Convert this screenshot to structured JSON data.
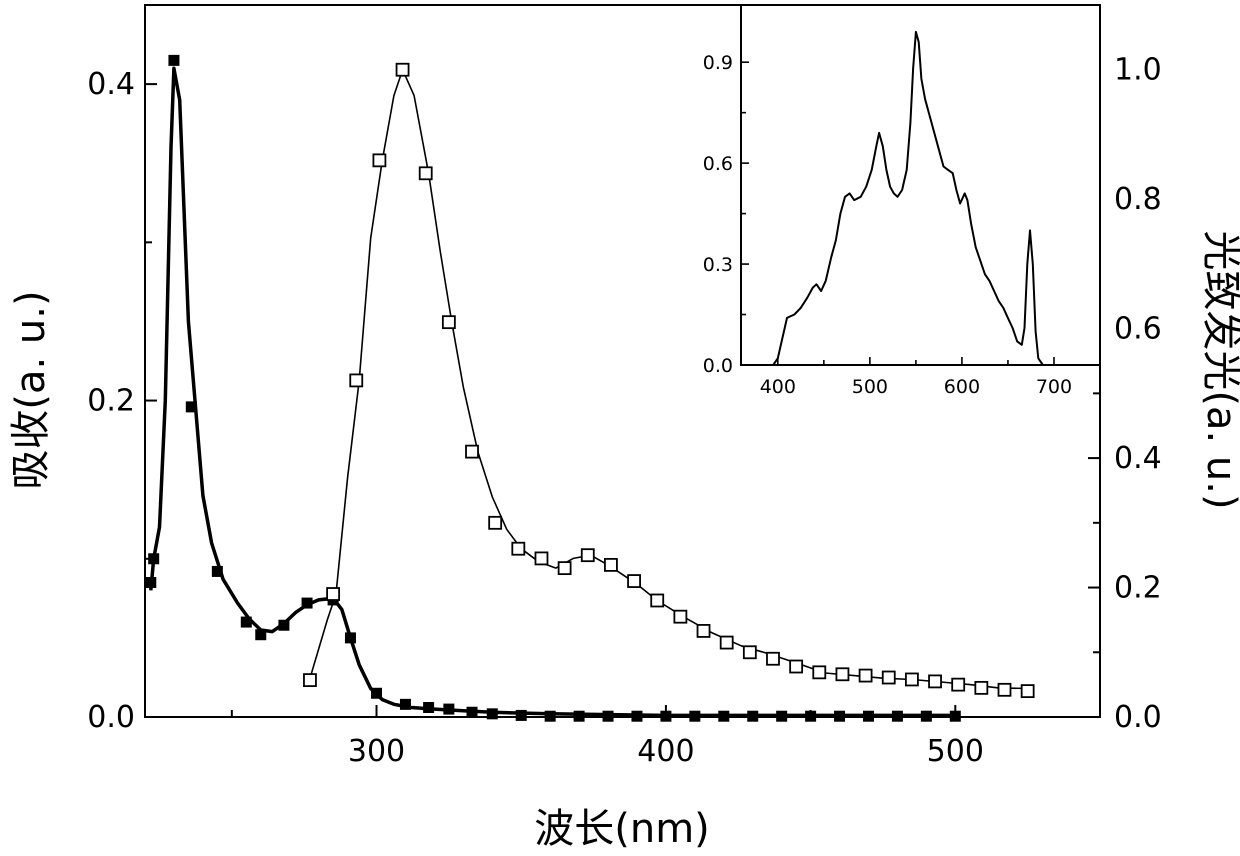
{
  "chart_data": [
    {
      "type": "line",
      "xlabel": "波长(nm)",
      "ylabel_left": "吸收(a. u.)",
      "ylabel_right": "光致发光(a. u.)",
      "xlim": [
        220,
        550
      ],
      "ylim_left": [
        0,
        0.45
      ],
      "ylim_right": [
        0,
        1.1
      ],
      "xticks": [
        "300",
        "400",
        "500"
      ],
      "yticks_left": [
        "0.0",
        "0.2",
        "0.4"
      ],
      "yticks_right": [
        "0.0",
        "0.2",
        "0.4",
        "0.6",
        "0.8",
        "1.0"
      ],
      "grid": false,
      "series": [
        {
          "axis": "left",
          "marker": "filled-square",
          "line": [
            [
              222,
              0.08
            ],
            [
              223,
              0.1
            ],
            [
              225,
              0.12
            ],
            [
              227,
              0.2
            ],
            [
              229,
              0.36
            ],
            [
              230,
              0.41
            ],
            [
              232,
              0.39
            ],
            [
              235,
              0.25
            ],
            [
              240,
              0.14
            ],
            [
              243,
              0.11
            ],
            [
              247,
              0.087
            ],
            [
              252,
              0.072
            ],
            [
              256,
              0.062
            ],
            [
              260,
              0.055
            ],
            [
              264,
              0.054
            ],
            [
              268,
              0.059
            ],
            [
              272,
              0.066
            ],
            [
              276,
              0.071
            ],
            [
              280,
              0.074
            ],
            [
              285,
              0.075
            ],
            [
              288,
              0.068
            ],
            [
              291,
              0.05
            ],
            [
              294,
              0.033
            ],
            [
              298,
              0.018
            ],
            [
              302,
              0.011
            ],
            [
              306,
              0.008
            ],
            [
              312,
              0.006
            ],
            [
              320,
              0.005
            ],
            [
              330,
              0.004
            ],
            [
              340,
              0.003
            ],
            [
              360,
              0.002
            ],
            [
              400,
              0.001
            ],
            [
              500,
              0.001
            ]
          ],
          "markers": [
            [
              222,
              0.085
            ],
            [
              223,
              0.1
            ],
            [
              230,
              0.415
            ],
            [
              236,
              0.196
            ],
            [
              245,
              0.092
            ],
            [
              255,
              0.06
            ],
            [
              260,
              0.052
            ],
            [
              268,
              0.058
            ],
            [
              276,
              0.072
            ],
            [
              285,
              0.074
            ],
            [
              291,
              0.05
            ],
            [
              300,
              0.015
            ],
            [
              310,
              0.008
            ],
            [
              318,
              0.006
            ],
            [
              325,
              0.005
            ],
            [
              333,
              0.003
            ],
            [
              340,
              0.002
            ],
            [
              350,
              0.001
            ],
            [
              360,
              0.0005
            ],
            [
              370,
              0.0005
            ],
            [
              380,
              0.0005
            ],
            [
              390,
              0.0005
            ],
            [
              400,
              0.0005
            ],
            [
              410,
              0.0005
            ],
            [
              420,
              0.0005
            ],
            [
              430,
              0.0005
            ],
            [
              440,
              0.0005
            ],
            [
              450,
              0.0005
            ],
            [
              460,
              0.0005
            ],
            [
              470,
              0.0005
            ],
            [
              480,
              0.0005
            ],
            [
              490,
              0.0005
            ],
            [
              500,
              0.0005
            ]
          ]
        },
        {
          "axis": "right",
          "marker": "open-square",
          "line": [
            [
              277,
              0.06
            ],
            [
              283,
              0.15
            ],
            [
              286,
              0.19
            ],
            [
              290,
              0.37
            ],
            [
              294,
              0.52
            ],
            [
              298,
              0.74
            ],
            [
              302,
              0.86
            ],
            [
              306,
              0.96
            ],
            [
              309,
              1.0
            ],
            [
              313,
              0.96
            ],
            [
              318,
              0.84
            ],
            [
              322,
              0.72
            ],
            [
              326,
              0.61
            ],
            [
              330,
              0.51
            ],
            [
              335,
              0.41
            ],
            [
              340,
              0.34
            ],
            [
              345,
              0.29
            ],
            [
              350,
              0.26
            ],
            [
              356,
              0.24
            ],
            [
              362,
              0.23
            ],
            [
              368,
              0.245
            ],
            [
              374,
              0.25
            ],
            [
              380,
              0.235
            ],
            [
              385,
              0.22
            ],
            [
              390,
              0.205
            ],
            [
              397,
              0.18
            ],
            [
              406,
              0.155
            ],
            [
              416,
              0.13
            ],
            [
              426,
              0.11
            ],
            [
              436,
              0.097
            ],
            [
              446,
              0.082
            ],
            [
              455,
              0.068
            ],
            [
              465,
              0.064
            ],
            [
              475,
              0.06
            ],
            [
              485,
              0.058
            ],
            [
              495,
              0.054
            ],
            [
              505,
              0.05
            ],
            [
              515,
              0.045
            ],
            [
              525,
              0.044
            ]
          ],
          "markers": [
            [
              277,
              0.057
            ],
            [
              285,
              0.19
            ],
            [
              293,
              0.52
            ],
            [
              301,
              0.86
            ],
            [
              309,
              1.0
            ],
            [
              317,
              0.84
            ],
            [
              325,
              0.61
            ],
            [
              333,
              0.41
            ],
            [
              341,
              0.3
            ],
            [
              349,
              0.26
            ],
            [
              357,
              0.245
            ],
            [
              365,
              0.23
            ],
            [
              373,
              0.25
            ],
            [
              381,
              0.235
            ],
            [
              389,
              0.21
            ],
            [
              397,
              0.18
            ],
            [
              405,
              0.155
            ],
            [
              413,
              0.133
            ],
            [
              421,
              0.115
            ],
            [
              429,
              0.1
            ],
            [
              437,
              0.09
            ],
            [
              445,
              0.078
            ],
            [
              453,
              0.069
            ],
            [
              461,
              0.066
            ],
            [
              469,
              0.064
            ],
            [
              477,
              0.061
            ],
            [
              485,
              0.058
            ],
            [
              493,
              0.055
            ],
            [
              501,
              0.05
            ],
            [
              509,
              0.045
            ],
            [
              517,
              0.042
            ],
            [
              525,
              0.04
            ]
          ]
        }
      ]
    },
    {
      "type": "line",
      "xlim": [
        360,
        750
      ],
      "ylim": [
        0,
        1.07
      ],
      "xticks": [
        "400",
        "500",
        "600",
        "700"
      ],
      "yticks": [
        "0.0",
        "0.3",
        "0.6",
        "0.9"
      ],
      "grid": false,
      "series": [
        {
          "values": [
            [
              360,
              0.0
            ],
            [
              395,
              0.0
            ],
            [
              400,
              0.02
            ],
            [
              410,
              0.14
            ],
            [
              418,
              0.15
            ],
            [
              425,
              0.17
            ],
            [
              432,
              0.2
            ],
            [
              438,
              0.23
            ],
            [
              442,
              0.24
            ],
            [
              447,
              0.22
            ],
            [
              452,
              0.25
            ],
            [
              458,
              0.32
            ],
            [
              463,
              0.37
            ],
            [
              468,
              0.45
            ],
            [
              473,
              0.5
            ],
            [
              478,
              0.51
            ],
            [
              483,
              0.49
            ],
            [
              490,
              0.5
            ],
            [
              496,
              0.53
            ],
            [
              502,
              0.58
            ],
            [
              507,
              0.65
            ],
            [
              510,
              0.69
            ],
            [
              514,
              0.65
            ],
            [
              518,
              0.58
            ],
            [
              522,
              0.53
            ],
            [
              526,
              0.51
            ],
            [
              530,
              0.5
            ],
            [
              535,
              0.52
            ],
            [
              540,
              0.58
            ],
            [
              544,
              0.72
            ],
            [
              547,
              0.88
            ],
            [
              550,
              0.99
            ],
            [
              553,
              0.96
            ],
            [
              556,
              0.85
            ],
            [
              560,
              0.79
            ],
            [
              565,
              0.74
            ],
            [
              570,
              0.69
            ],
            [
              575,
              0.64
            ],
            [
              580,
              0.59
            ],
            [
              585,
              0.58
            ],
            [
              590,
              0.57
            ],
            [
              594,
              0.52
            ],
            [
              598,
              0.48
            ],
            [
              603,
              0.51
            ],
            [
              606,
              0.49
            ],
            [
              610,
              0.42
            ],
            [
              615,
              0.35
            ],
            [
              620,
              0.31
            ],
            [
              625,
              0.27
            ],
            [
              630,
              0.25
            ],
            [
              635,
              0.22
            ],
            [
              640,
              0.19
            ],
            [
              645,
              0.17
            ],
            [
              650,
              0.14
            ],
            [
              655,
              0.11
            ],
            [
              660,
              0.07
            ],
            [
              665,
              0.06
            ],
            [
              668,
              0.11
            ],
            [
              671,
              0.3
            ],
            [
              674,
              0.4
            ],
            [
              677,
              0.3
            ],
            [
              680,
              0.1
            ],
            [
              683,
              0.02
            ],
            [
              688,
              0.0
            ],
            [
              750,
              0.0
            ]
          ]
        }
      ]
    }
  ]
}
